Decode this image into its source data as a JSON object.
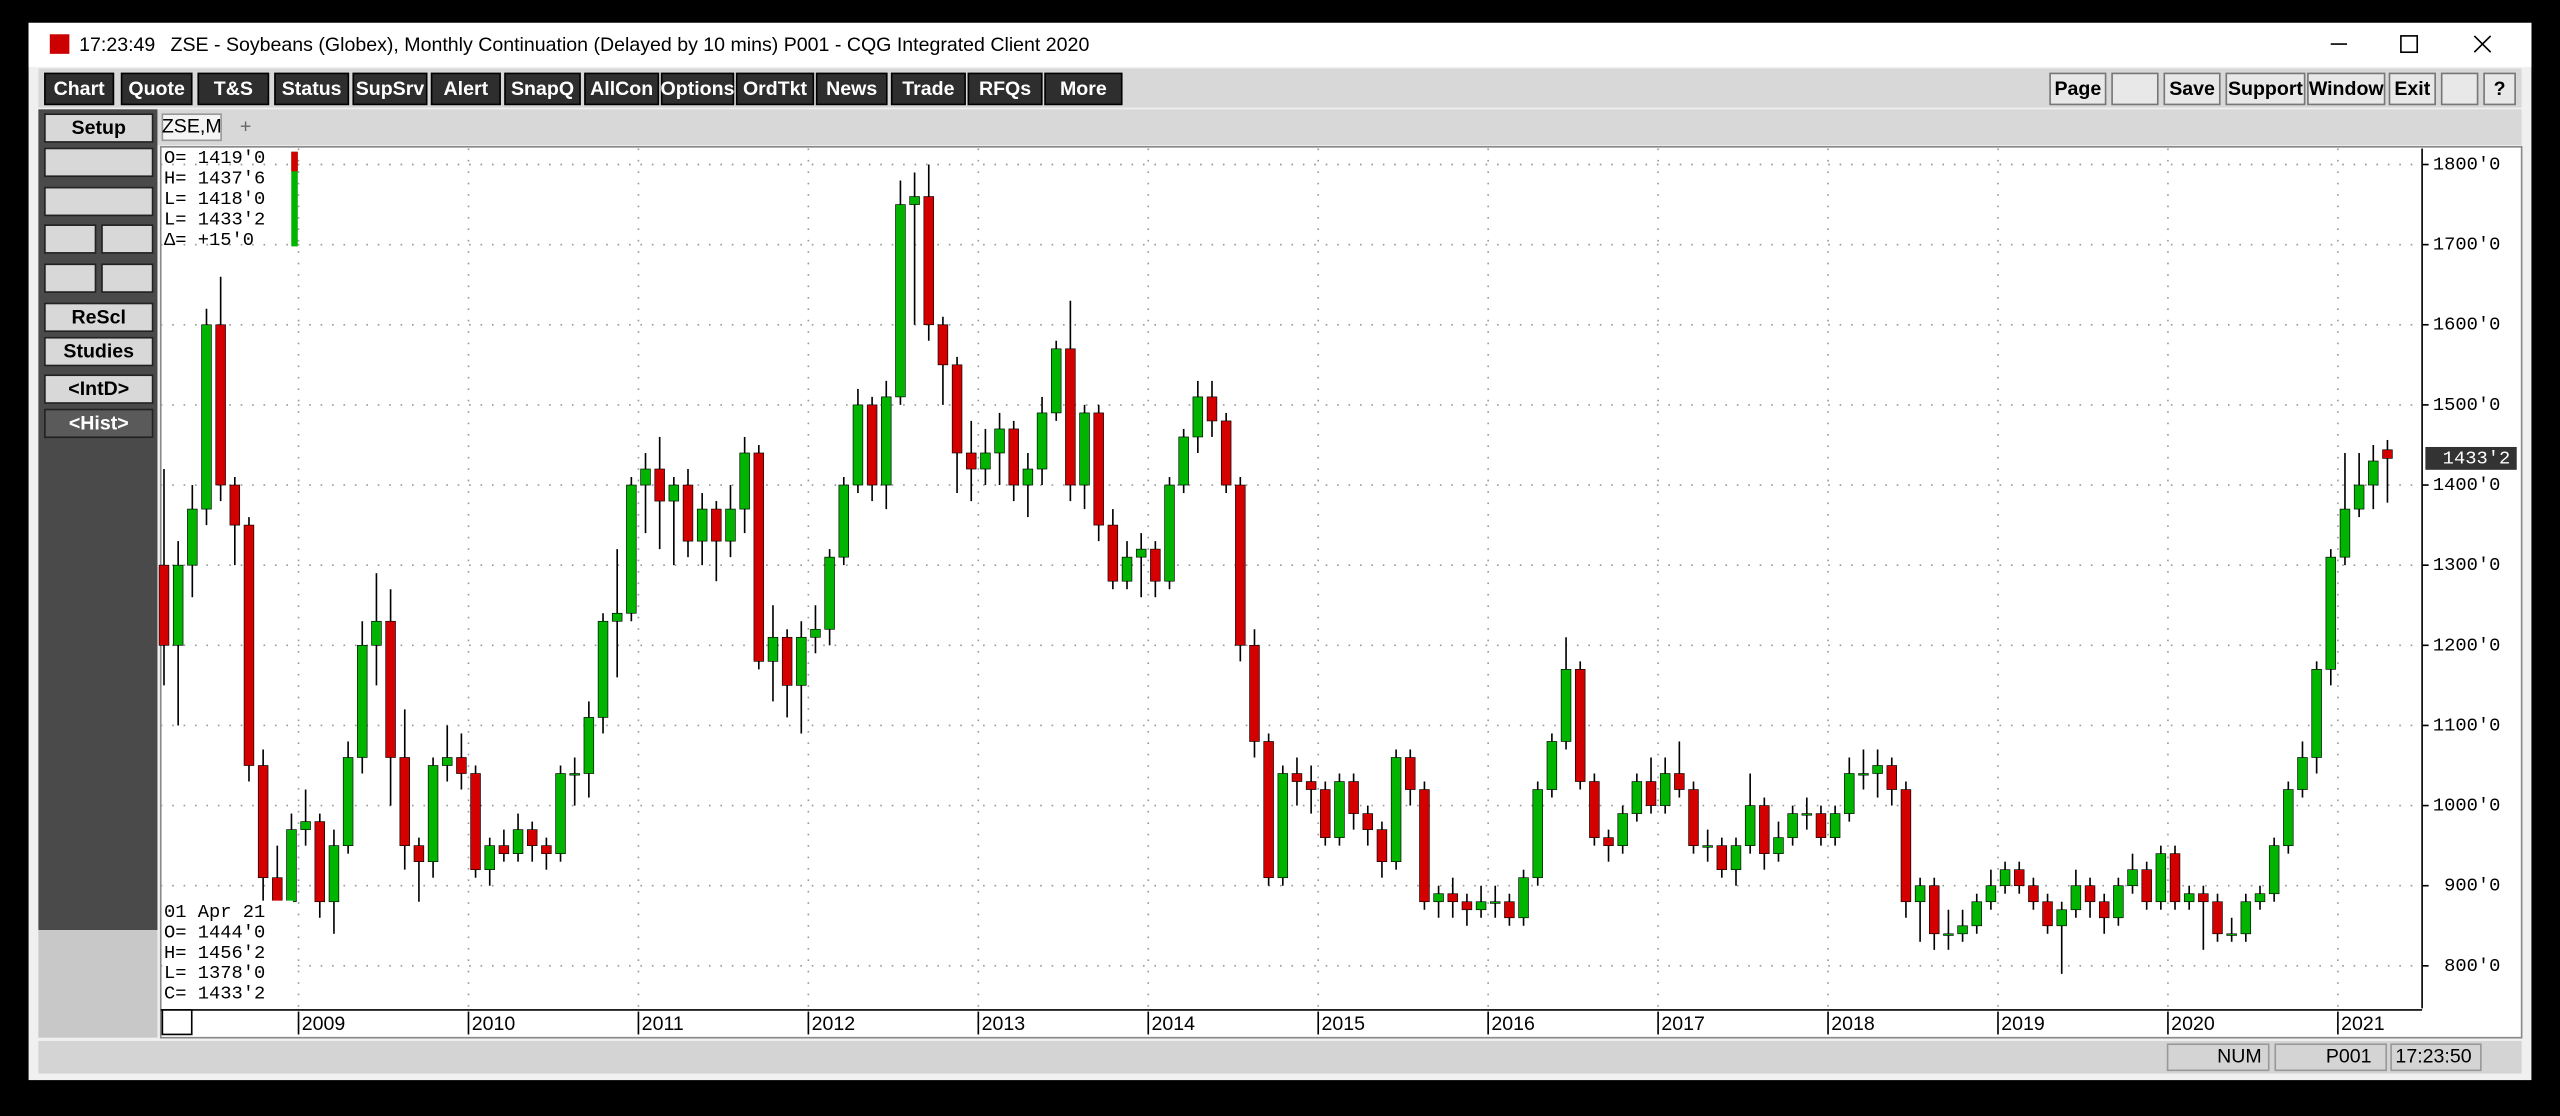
{
  "window": {
    "time": "17:23:49",
    "title": "ZSE - Soybeans (Globex), Monthly Continuation (Delayed by 10 mins)   P001 - CQG Integrated Client 2020"
  },
  "toolbar": [
    "Chart",
    "Quote",
    "T&S",
    "Status",
    "SupSrv",
    "Alert",
    "SnapQ",
    "AllCon",
    "Options",
    "OrdTkt",
    "News",
    "Trade",
    "RFQs",
    "More"
  ],
  "toolbar_right": [
    "Page",
    "Save",
    "Support",
    "Window",
    "Exit",
    "?"
  ],
  "side_buttons": [
    "Setup",
    "ReScl",
    "Studies",
    "<IntD>",
    "<Hist>"
  ],
  "tab": "ZSE,M",
  "tab_add": "+",
  "quote_box": [
    "O=  1419'0",
    "H=  1437'6",
    "L=  1418'0",
    "L=  1433'2",
    "Δ=   +15'0"
  ],
  "bar_box": [
    "01 Apr 21",
    "O=  1444'0",
    "H=  1456'2",
    "L=  1378'0",
    "C=  1433'2"
  ],
  "status": [
    "NUM",
    "P001",
    "17:23:50"
  ],
  "chart_data": {
    "type": "candlestick",
    "up_color": "#00b400",
    "down_color": "#d40000",
    "grid": true,
    "ylim": [
      747,
      1820
    ],
    "yticks": [
      {
        "value": 800,
        "label": "800'0"
      },
      {
        "value": 900,
        "label": "900'0"
      },
      {
        "value": 1000,
        "label": "1000'0"
      },
      {
        "value": 1100,
        "label": "1100'0"
      },
      {
        "value": 1200,
        "label": "1200'0"
      },
      {
        "value": 1300,
        "label": "1300'0"
      },
      {
        "value": 1400,
        "label": "1400'0"
      },
      {
        "value": 1500,
        "label": "1500'0"
      },
      {
        "value": 1600,
        "label": "1600'0"
      },
      {
        "value": 1700,
        "label": "1700'0"
      },
      {
        "value": 1800,
        "label": "1800'0"
      }
    ],
    "last_price": {
      "value": 1433.25,
      "label": "1433'2"
    },
    "categories": [
      null,
      null,
      null,
      null,
      null,
      null,
      null,
      null,
      null,
      null,
      "2009",
      null,
      null,
      null,
      null,
      null,
      null,
      null,
      null,
      null,
      null,
      null,
      "2010",
      null,
      null,
      null,
      null,
      null,
      null,
      null,
      null,
      null,
      null,
      null,
      "2011",
      null,
      null,
      null,
      null,
      null,
      null,
      null,
      null,
      null,
      null,
      null,
      "2012",
      null,
      null,
      null,
      null,
      null,
      null,
      null,
      null,
      null,
      null,
      null,
      "2013",
      null,
      null,
      null,
      null,
      null,
      null,
      null,
      null,
      null,
      null,
      null,
      "2014",
      null,
      null,
      null,
      null,
      null,
      null,
      null,
      null,
      null,
      null,
      null,
      "2015",
      null,
      null,
      null,
      null,
      null,
      null,
      null,
      null,
      null,
      null,
      null,
      "2016",
      null,
      null,
      null,
      null,
      null,
      null,
      null,
      null,
      null,
      null,
      null,
      "2017",
      null,
      null,
      null,
      null,
      null,
      null,
      null,
      null,
      null,
      null,
      null,
      "2018",
      null,
      null,
      null,
      null,
      null,
      null,
      null,
      null,
      null,
      null,
      null,
      "2019",
      null,
      null,
      null,
      null,
      null,
      null,
      null,
      null,
      null,
      null,
      null,
      "2020",
      null,
      null,
      null,
      null,
      null,
      null,
      null,
      null,
      null,
      null,
      null,
      "2021",
      null,
      null,
      null
    ],
    "candles": [
      [
        1300,
        1420,
        1150,
        1200
      ],
      [
        1200,
        1330,
        1100,
        1300
      ],
      [
        1300,
        1400,
        1260,
        1370
      ],
      [
        1370,
        1620,
        1350,
        1600
      ],
      [
        1600,
        1660,
        1380,
        1400
      ],
      [
        1400,
        1410,
        1300,
        1350
      ],
      [
        1350,
        1360,
        1030,
        1050
      ],
      [
        1050,
        1070,
        870,
        910
      ],
      [
        910,
        950,
        860,
        880
      ],
      [
        880,
        990,
        860,
        970
      ],
      [
        970,
        1020,
        950,
        980
      ],
      [
        980,
        990,
        860,
        880
      ],
      [
        880,
        970,
        840,
        950
      ],
      [
        950,
        1080,
        940,
        1060
      ],
      [
        1060,
        1230,
        1040,
        1200
      ],
      [
        1200,
        1290,
        1150,
        1230
      ],
      [
        1230,
        1270,
        1000,
        1060
      ],
      [
        1060,
        1120,
        920,
        950
      ],
      [
        950,
        960,
        880,
        930
      ],
      [
        930,
        1060,
        910,
        1050
      ],
      [
        1050,
        1100,
        1030,
        1060
      ],
      [
        1060,
        1090,
        1020,
        1040
      ],
      [
        1040,
        1050,
        910,
        920
      ],
      [
        920,
        960,
        900,
        950
      ],
      [
        950,
        970,
        930,
        940
      ],
      [
        940,
        990,
        930,
        970
      ],
      [
        970,
        980,
        930,
        950
      ],
      [
        950,
        960,
        920,
        940
      ],
      [
        940,
        1050,
        930,
        1040
      ],
      [
        1040,
        1060,
        1000,
        1040
      ],
      [
        1040,
        1130,
        1010,
        1110
      ],
      [
        1110,
        1240,
        1090,
        1230
      ],
      [
        1230,
        1320,
        1160,
        1240
      ],
      [
        1240,
        1410,
        1230,
        1400
      ],
      [
        1400,
        1440,
        1340,
        1420
      ],
      [
        1420,
        1460,
        1320,
        1380
      ],
      [
        1380,
        1410,
        1300,
        1400
      ],
      [
        1400,
        1420,
        1310,
        1330
      ],
      [
        1330,
        1390,
        1300,
        1370
      ],
      [
        1370,
        1380,
        1280,
        1330
      ],
      [
        1330,
        1400,
        1310,
        1370
      ],
      [
        1370,
        1460,
        1340,
        1440
      ],
      [
        1440,
        1450,
        1170,
        1180
      ],
      [
        1180,
        1250,
        1130,
        1210
      ],
      [
        1210,
        1220,
        1110,
        1150
      ],
      [
        1150,
        1230,
        1090,
        1210
      ],
      [
        1210,
        1250,
        1190,
        1220
      ],
      [
        1220,
        1320,
        1200,
        1310
      ],
      [
        1310,
        1410,
        1300,
        1400
      ],
      [
        1400,
        1520,
        1390,
        1500
      ],
      [
        1500,
        1510,
        1380,
        1400
      ],
      [
        1400,
        1530,
        1370,
        1510
      ],
      [
        1510,
        1780,
        1500,
        1750
      ],
      [
        1750,
        1790,
        1600,
        1760
      ],
      [
        1760,
        1800,
        1580,
        1600
      ],
      [
        1600,
        1610,
        1500,
        1550
      ],
      [
        1550,
        1560,
        1390,
        1440
      ],
      [
        1440,
        1480,
        1380,
        1420
      ],
      [
        1420,
        1470,
        1400,
        1440
      ],
      [
        1440,
        1490,
        1400,
        1470
      ],
      [
        1470,
        1480,
        1380,
        1400
      ],
      [
        1400,
        1440,
        1360,
        1420
      ],
      [
        1420,
        1510,
        1400,
        1490
      ],
      [
        1490,
        1580,
        1480,
        1570
      ],
      [
        1570,
        1630,
        1380,
        1400
      ],
      [
        1400,
        1500,
        1370,
        1490
      ],
      [
        1490,
        1500,
        1330,
        1350
      ],
      [
        1350,
        1370,
        1270,
        1280
      ],
      [
        1280,
        1330,
        1270,
        1310
      ],
      [
        1310,
        1340,
        1260,
        1320
      ],
      [
        1320,
        1330,
        1260,
        1280
      ],
      [
        1280,
        1410,
        1270,
        1400
      ],
      [
        1400,
        1470,
        1390,
        1460
      ],
      [
        1460,
        1530,
        1440,
        1510
      ],
      [
        1510,
        1530,
        1460,
        1480
      ],
      [
        1480,
        1490,
        1390,
        1400
      ],
      [
        1400,
        1410,
        1180,
        1200
      ],
      [
        1200,
        1220,
        1060,
        1080
      ],
      [
        1080,
        1090,
        900,
        910
      ],
      [
        910,
        1050,
        900,
        1040
      ],
      [
        1040,
        1060,
        1000,
        1030
      ],
      [
        1030,
        1050,
        990,
        1020
      ],
      [
        1020,
        1030,
        950,
        960
      ],
      [
        960,
        1040,
        950,
        1030
      ],
      [
        1030,
        1040,
        970,
        990
      ],
      [
        990,
        1000,
        950,
        970
      ],
      [
        970,
        980,
        910,
        930
      ],
      [
        930,
        1070,
        920,
        1060
      ],
      [
        1060,
        1070,
        1000,
        1020
      ],
      [
        1020,
        1030,
        870,
        880
      ],
      [
        880,
        900,
        860,
        890
      ],
      [
        890,
        910,
        860,
        880
      ],
      [
        880,
        890,
        850,
        870
      ],
      [
        870,
        900,
        860,
        880
      ],
      [
        880,
        900,
        860,
        880
      ],
      [
        880,
        890,
        850,
        860
      ],
      [
        860,
        920,
        850,
        910
      ],
      [
        910,
        1030,
        900,
        1020
      ],
      [
        1020,
        1090,
        1010,
        1080
      ],
      [
        1080,
        1210,
        1070,
        1170
      ],
      [
        1170,
        1180,
        1020,
        1030
      ],
      [
        1030,
        1040,
        950,
        960
      ],
      [
        960,
        970,
        930,
        950
      ],
      [
        950,
        1000,
        940,
        990
      ],
      [
        990,
        1040,
        980,
        1030
      ],
      [
        1030,
        1060,
        990,
        1000
      ],
      [
        1000,
        1060,
        990,
        1040
      ],
      [
        1040,
        1080,
        1010,
        1020
      ],
      [
        1020,
        1030,
        940,
        950
      ],
      [
        950,
        970,
        930,
        950
      ],
      [
        950,
        960,
        910,
        920
      ],
      [
        920,
        960,
        900,
        950
      ],
      [
        950,
        1040,
        940,
        1000
      ],
      [
        1000,
        1010,
        920,
        940
      ],
      [
        940,
        980,
        930,
        960
      ],
      [
        960,
        1000,
        950,
        990
      ],
      [
        990,
        1010,
        970,
        990
      ],
      [
        990,
        1000,
        950,
        960
      ],
      [
        960,
        1000,
        950,
        990
      ],
      [
        990,
        1060,
        980,
        1040
      ],
      [
        1040,
        1070,
        1020,
        1040
      ],
      [
        1040,
        1070,
        1010,
        1050
      ],
      [
        1050,
        1060,
        1000,
        1020
      ],
      [
        1020,
        1030,
        860,
        880
      ],
      [
        880,
        910,
        830,
        900
      ],
      [
        900,
        910,
        820,
        840
      ],
      [
        840,
        870,
        820,
        840
      ],
      [
        840,
        870,
        830,
        850
      ],
      [
        850,
        890,
        840,
        880
      ],
      [
        880,
        920,
        870,
        900
      ],
      [
        900,
        930,
        890,
        920
      ],
      [
        920,
        930,
        890,
        900
      ],
      [
        900,
        910,
        870,
        880
      ],
      [
        880,
        890,
        840,
        850
      ],
      [
        850,
        880,
        790,
        870
      ],
      [
        870,
        920,
        860,
        900
      ],
      [
        900,
        910,
        860,
        880
      ],
      [
        880,
        890,
        840,
        860
      ],
      [
        860,
        910,
        850,
        900
      ],
      [
        900,
        940,
        890,
        920
      ],
      [
        920,
        930,
        870,
        880
      ],
      [
        880,
        950,
        870,
        940
      ],
      [
        940,
        950,
        870,
        880
      ],
      [
        880,
        900,
        870,
        890
      ],
      [
        890,
        900,
        820,
        880
      ],
      [
        880,
        890,
        830,
        840
      ],
      [
        840,
        860,
        830,
        840
      ],
      [
        840,
        890,
        830,
        880
      ],
      [
        880,
        900,
        870,
        890
      ],
      [
        890,
        960,
        880,
        950
      ],
      [
        950,
        1030,
        940,
        1020
      ],
      [
        1020,
        1080,
        1010,
        1060
      ],
      [
        1060,
        1180,
        1040,
        1170
      ],
      [
        1170,
        1320,
        1150,
        1310
      ],
      [
        1310,
        1440,
        1300,
        1370
      ],
      [
        1370,
        1440,
        1360,
        1400
      ],
      [
        1400,
        1450,
        1370,
        1430
      ],
      [
        1444,
        1456.25,
        1378,
        1433.25
      ]
    ]
  }
}
